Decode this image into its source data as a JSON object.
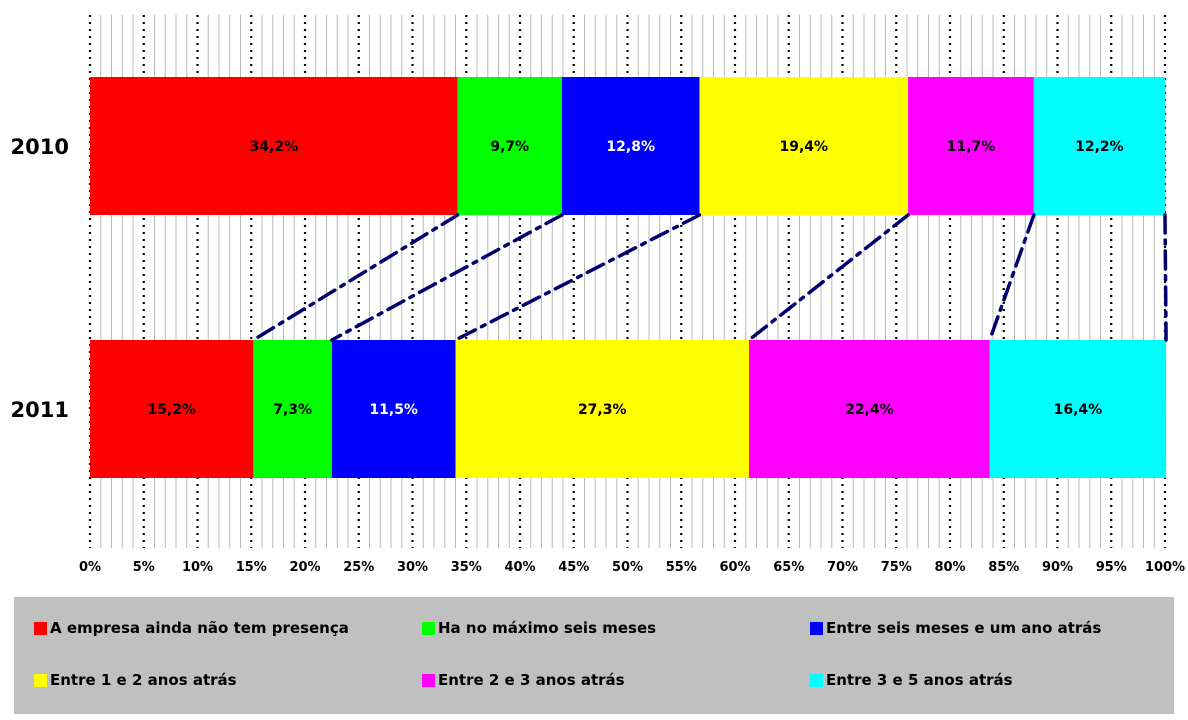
{
  "chart_data": {
    "type": "bar",
    "orientation": "horizontal",
    "stacked": "100%",
    "categories": [
      "2010",
      "2011"
    ],
    "series": [
      {
        "name": "A empresa ainda não tem presença",
        "color": "#ff0000",
        "values": [
          34.2,
          15.2
        ],
        "labels": [
          "34,2%",
          "15,2%"
        ]
      },
      {
        "name": "Ha no máximo seis meses",
        "color": "#00ff00",
        "values": [
          9.7,
          7.3
        ],
        "labels": [
          "9,7%",
          "7,3%"
        ]
      },
      {
        "name": "Entre seis meses e um ano atrás",
        "color": "#0000ff",
        "values": [
          12.8,
          11.5
        ],
        "labels": [
          "12,8%",
          "11,5%"
        ]
      },
      {
        "name": "Entre 1 e 2 anos atrás",
        "color": "#ffff00",
        "values": [
          19.4,
          27.3
        ],
        "labels": [
          "19,4%",
          "27,3%"
        ]
      },
      {
        "name": "Entre 2 e 3 anos atrás",
        "color": "#ff00ff",
        "values": [
          11.7,
          22.4
        ],
        "labels": [
          "11,7%",
          "22,4%"
        ]
      },
      {
        "name": "Entre 3 e 5 anos atrás",
        "color": "#00ffff",
        "values": [
          12.2,
          16.4
        ],
        "labels": [
          "12,2%",
          "16,4%"
        ]
      }
    ],
    "xlim": [
      0,
      100
    ],
    "x_ticks": [
      "0%",
      "5%",
      "10%",
      "15%",
      "20%",
      "25%",
      "30%",
      "35%",
      "40%",
      "45%",
      "50%",
      "55%",
      "60%",
      "65%",
      "70%",
      "75%",
      "80%",
      "85%",
      "90%",
      "95%",
      "100%"
    ],
    "series_lines": true,
    "grid": true,
    "legend_position": "bottom",
    "title": "",
    "xlabel": "",
    "ylabel": ""
  }
}
